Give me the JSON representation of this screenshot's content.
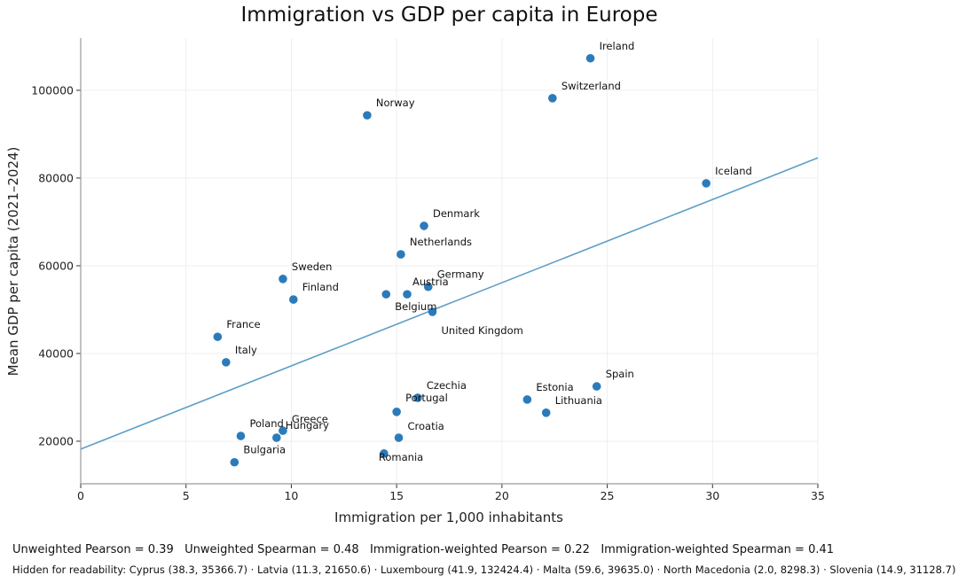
{
  "chart_data": {
    "type": "scatter",
    "title": "Immigration vs GDP per capita in Europe",
    "xlabel": "Immigration per 1,000 inhabitants",
    "ylabel": "Mean GDP per capita (2021–2024)",
    "xlim": [
      0,
      35
    ],
    "ylim": [
      10300,
      111900
    ],
    "xticks": [
      0,
      5,
      10,
      15,
      20,
      25,
      30,
      35
    ],
    "yticks": [
      20000,
      40000,
      60000,
      80000,
      100000
    ],
    "grid": true,
    "legend": "none",
    "point_color": "#2b7bba",
    "trend_color": "#5d9ec9",
    "trendline": {
      "intercept": 18200,
      "slope": 1897
    },
    "points": [
      {
        "name": "Ireland",
        "x": 24.2,
        "y": 107300
      },
      {
        "name": "Switzerland",
        "x": 22.4,
        "y": 98200
      },
      {
        "name": "Norway",
        "x": 13.6,
        "y": 94300
      },
      {
        "name": "Iceland",
        "x": 29.7,
        "y": 78800
      },
      {
        "name": "Denmark",
        "x": 16.3,
        "y": 69100
      },
      {
        "name": "Netherlands",
        "x": 15.2,
        "y": 62600
      },
      {
        "name": "Sweden",
        "x": 9.6,
        "y": 57000
      },
      {
        "name": "Finland",
        "x": 10.1,
        "y": 52300
      },
      {
        "name": "Germany",
        "x": 16.5,
        "y": 55200
      },
      {
        "name": "Belgium",
        "x": 14.5,
        "y": 53500
      },
      {
        "name": "Austria",
        "x": 15.5,
        "y": 53500
      },
      {
        "name": "United Kingdom",
        "x": 16.7,
        "y": 49500
      },
      {
        "name": "France",
        "x": 6.5,
        "y": 43800
      },
      {
        "name": "Italy",
        "x": 6.9,
        "y": 38000
      },
      {
        "name": "Spain",
        "x": 24.5,
        "y": 32500
      },
      {
        "name": "Estonia",
        "x": 21.2,
        "y": 29500
      },
      {
        "name": "Lithuania",
        "x": 22.1,
        "y": 26500
      },
      {
        "name": "Czechia",
        "x": 16.0,
        "y": 29900
      },
      {
        "name": "Portugal",
        "x": 15.0,
        "y": 26700
      },
      {
        "name": "Croatia",
        "x": 15.1,
        "y": 20800
      },
      {
        "name": "Romania",
        "x": 14.4,
        "y": 17200
      },
      {
        "name": "Poland",
        "x": 7.6,
        "y": 21200
      },
      {
        "name": "Greece",
        "x": 9.6,
        "y": 22400
      },
      {
        "name": "Hungary",
        "x": 9.3,
        "y": 20800
      },
      {
        "name": "Bulgaria",
        "x": 7.3,
        "y": 15200
      }
    ],
    "annotations": {
      "stats": "Unweighted Pearson = 0.39   Unweighted Spearman = 0.48   Immigration-weighted Pearson = 0.22   Immigration-weighted Spearman = 0.41",
      "hidden": "Hidden for readability: Cyprus (38.3, 35366.7) · Latvia (11.3, 21650.6) · Luxembourg (41.9, 132424.4) · Malta (59.6, 39635.0) · North Macedonia (2.0, 8298.3) · Slovenia (14.9, 31128.7)"
    }
  }
}
